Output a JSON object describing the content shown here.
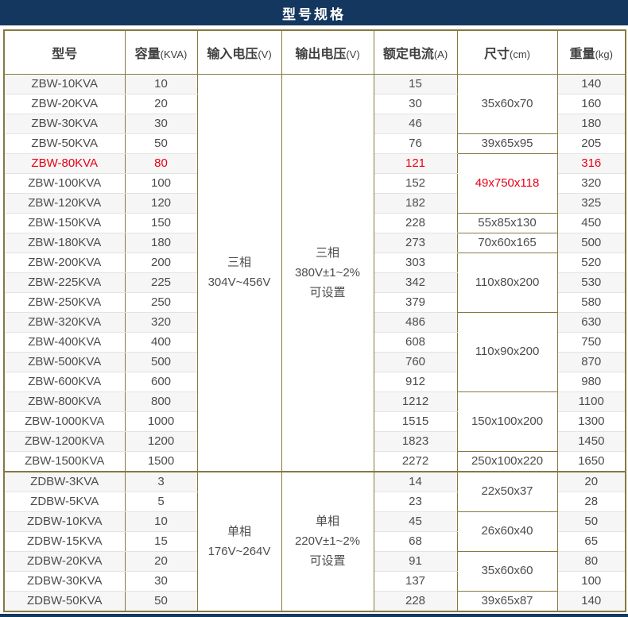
{
  "title": "型号规格",
  "colors": {
    "header_bar_bg": "#14375f",
    "table_border": "#867943",
    "highlight_red": "#e60012"
  },
  "table": {
    "headers": [
      {
        "label": "型号",
        "unit": ""
      },
      {
        "label": "容量",
        "unit": "(KVA)"
      },
      {
        "label": "输入电压",
        "unit": "(V)"
      },
      {
        "label": "输出电压",
        "unit": "(V)"
      },
      {
        "label": "额定电流",
        "unit": "(A)"
      },
      {
        "label": "尺寸",
        "unit": "(cm)"
      },
      {
        "label": "重量",
        "unit": "(kg)"
      }
    ],
    "sections": [
      {
        "input_voltage": [
          "三相",
          "304V~456V"
        ],
        "output_voltage": [
          "三相",
          "380V±1~2%",
          "可设置"
        ],
        "rows": [
          {
            "model": "ZBW-10KVA",
            "capacity": "10",
            "current": "15",
            "weight": "140",
            "highlight": false
          },
          {
            "model": "ZBW-20KVA",
            "capacity": "20",
            "current": "30",
            "weight": "160",
            "highlight": false
          },
          {
            "model": "ZBW-30KVA",
            "capacity": "30",
            "current": "46",
            "weight": "180",
            "highlight": false
          },
          {
            "model": "ZBW-50KVA",
            "capacity": "50",
            "current": "76",
            "weight": "205",
            "highlight": false
          },
          {
            "model": "ZBW-80KVA",
            "capacity": "80",
            "current": "121",
            "weight": "316",
            "highlight": true
          },
          {
            "model": "ZBW-100KVA",
            "capacity": "100",
            "current": "152",
            "weight": "320",
            "highlight": false
          },
          {
            "model": "ZBW-120KVA",
            "capacity": "120",
            "current": "182",
            "weight": "325",
            "highlight": false
          },
          {
            "model": "ZBW-150KVA",
            "capacity": "150",
            "current": "228",
            "weight": "450",
            "highlight": false
          },
          {
            "model": "ZBW-180KVA",
            "capacity": "180",
            "current": "273",
            "weight": "500",
            "highlight": false
          },
          {
            "model": "ZBW-200KVA",
            "capacity": "200",
            "current": "303",
            "weight": "520",
            "highlight": false
          },
          {
            "model": "ZBW-225KVA",
            "capacity": "225",
            "current": "342",
            "weight": "530",
            "highlight": false
          },
          {
            "model": "ZBW-250KVA",
            "capacity": "250",
            "current": "379",
            "weight": "580",
            "highlight": false
          },
          {
            "model": "ZBW-320KVA",
            "capacity": "320",
            "current": "486",
            "weight": "630",
            "highlight": false
          },
          {
            "model": "ZBW-400KVA",
            "capacity": "400",
            "current": "608",
            "weight": "750",
            "highlight": false
          },
          {
            "model": "ZBW-500KVA",
            "capacity": "500",
            "current": "760",
            "weight": "870",
            "highlight": false
          },
          {
            "model": "ZBW-600KVA",
            "capacity": "600",
            "current": "912",
            "weight": "980",
            "highlight": false
          },
          {
            "model": "ZBW-800KVA",
            "capacity": "800",
            "current": "1212",
            "weight": "1100",
            "highlight": false
          },
          {
            "model": "ZBW-1000KVA",
            "capacity": "1000",
            "current": "1515",
            "weight": "1300",
            "highlight": false
          },
          {
            "model": "ZBW-1200KVA",
            "capacity": "1200",
            "current": "1823",
            "weight": "1450",
            "highlight": false
          },
          {
            "model": "ZBW-1500KVA",
            "capacity": "1500",
            "current": "2272",
            "weight": "1650",
            "highlight": false
          }
        ],
        "sizes": [
          {
            "value": "35x60x70",
            "span": 3,
            "highlight": false
          },
          {
            "value": "39x65x95",
            "span": 1,
            "highlight": false
          },
          {
            "value": "49x750x118",
            "span": 3,
            "highlight": true
          },
          {
            "value": "55x85x130",
            "span": 1,
            "highlight": false
          },
          {
            "value": "70x60x165",
            "span": 1,
            "highlight": false
          },
          {
            "value": "110x80x200",
            "span": 3,
            "highlight": false
          },
          {
            "value": "110x90x200",
            "span": 4,
            "highlight": false
          },
          {
            "value": "150x100x200",
            "span": 3,
            "highlight": false
          },
          {
            "value": "250x100x220",
            "span": 1,
            "highlight": false
          }
        ]
      },
      {
        "input_voltage": [
          "单相",
          "176V~264V"
        ],
        "output_voltage": [
          "单相",
          "220V±1~2%",
          "可设置"
        ],
        "rows": [
          {
            "model": "ZDBW-3KVA",
            "capacity": "3",
            "current": "14",
            "weight": "20",
            "highlight": false
          },
          {
            "model": "ZDBW-5KVA",
            "capacity": "5",
            "current": "23",
            "weight": "28",
            "highlight": false
          },
          {
            "model": "ZDBW-10KVA",
            "capacity": "10",
            "current": "45",
            "weight": "50",
            "highlight": false
          },
          {
            "model": "ZDBW-15KVA",
            "capacity": "15",
            "current": "68",
            "weight": "65",
            "highlight": false
          },
          {
            "model": "ZDBW-20KVA",
            "capacity": "20",
            "current": "91",
            "weight": "80",
            "highlight": false
          },
          {
            "model": "ZDBW-30KVA",
            "capacity": "30",
            "current": "137",
            "weight": "100",
            "highlight": false
          },
          {
            "model": "ZDBW-50KVA",
            "capacity": "50",
            "current": "228",
            "weight": "140",
            "highlight": false
          }
        ],
        "sizes": [
          {
            "value": "22x50x37",
            "span": 2,
            "highlight": false
          },
          {
            "value": "26x60x40",
            "span": 2,
            "highlight": false
          },
          {
            "value": "35x60x60",
            "span": 2,
            "highlight": false
          },
          {
            "value": "39x65x87",
            "span": 1,
            "highlight": false
          }
        ]
      }
    ]
  }
}
